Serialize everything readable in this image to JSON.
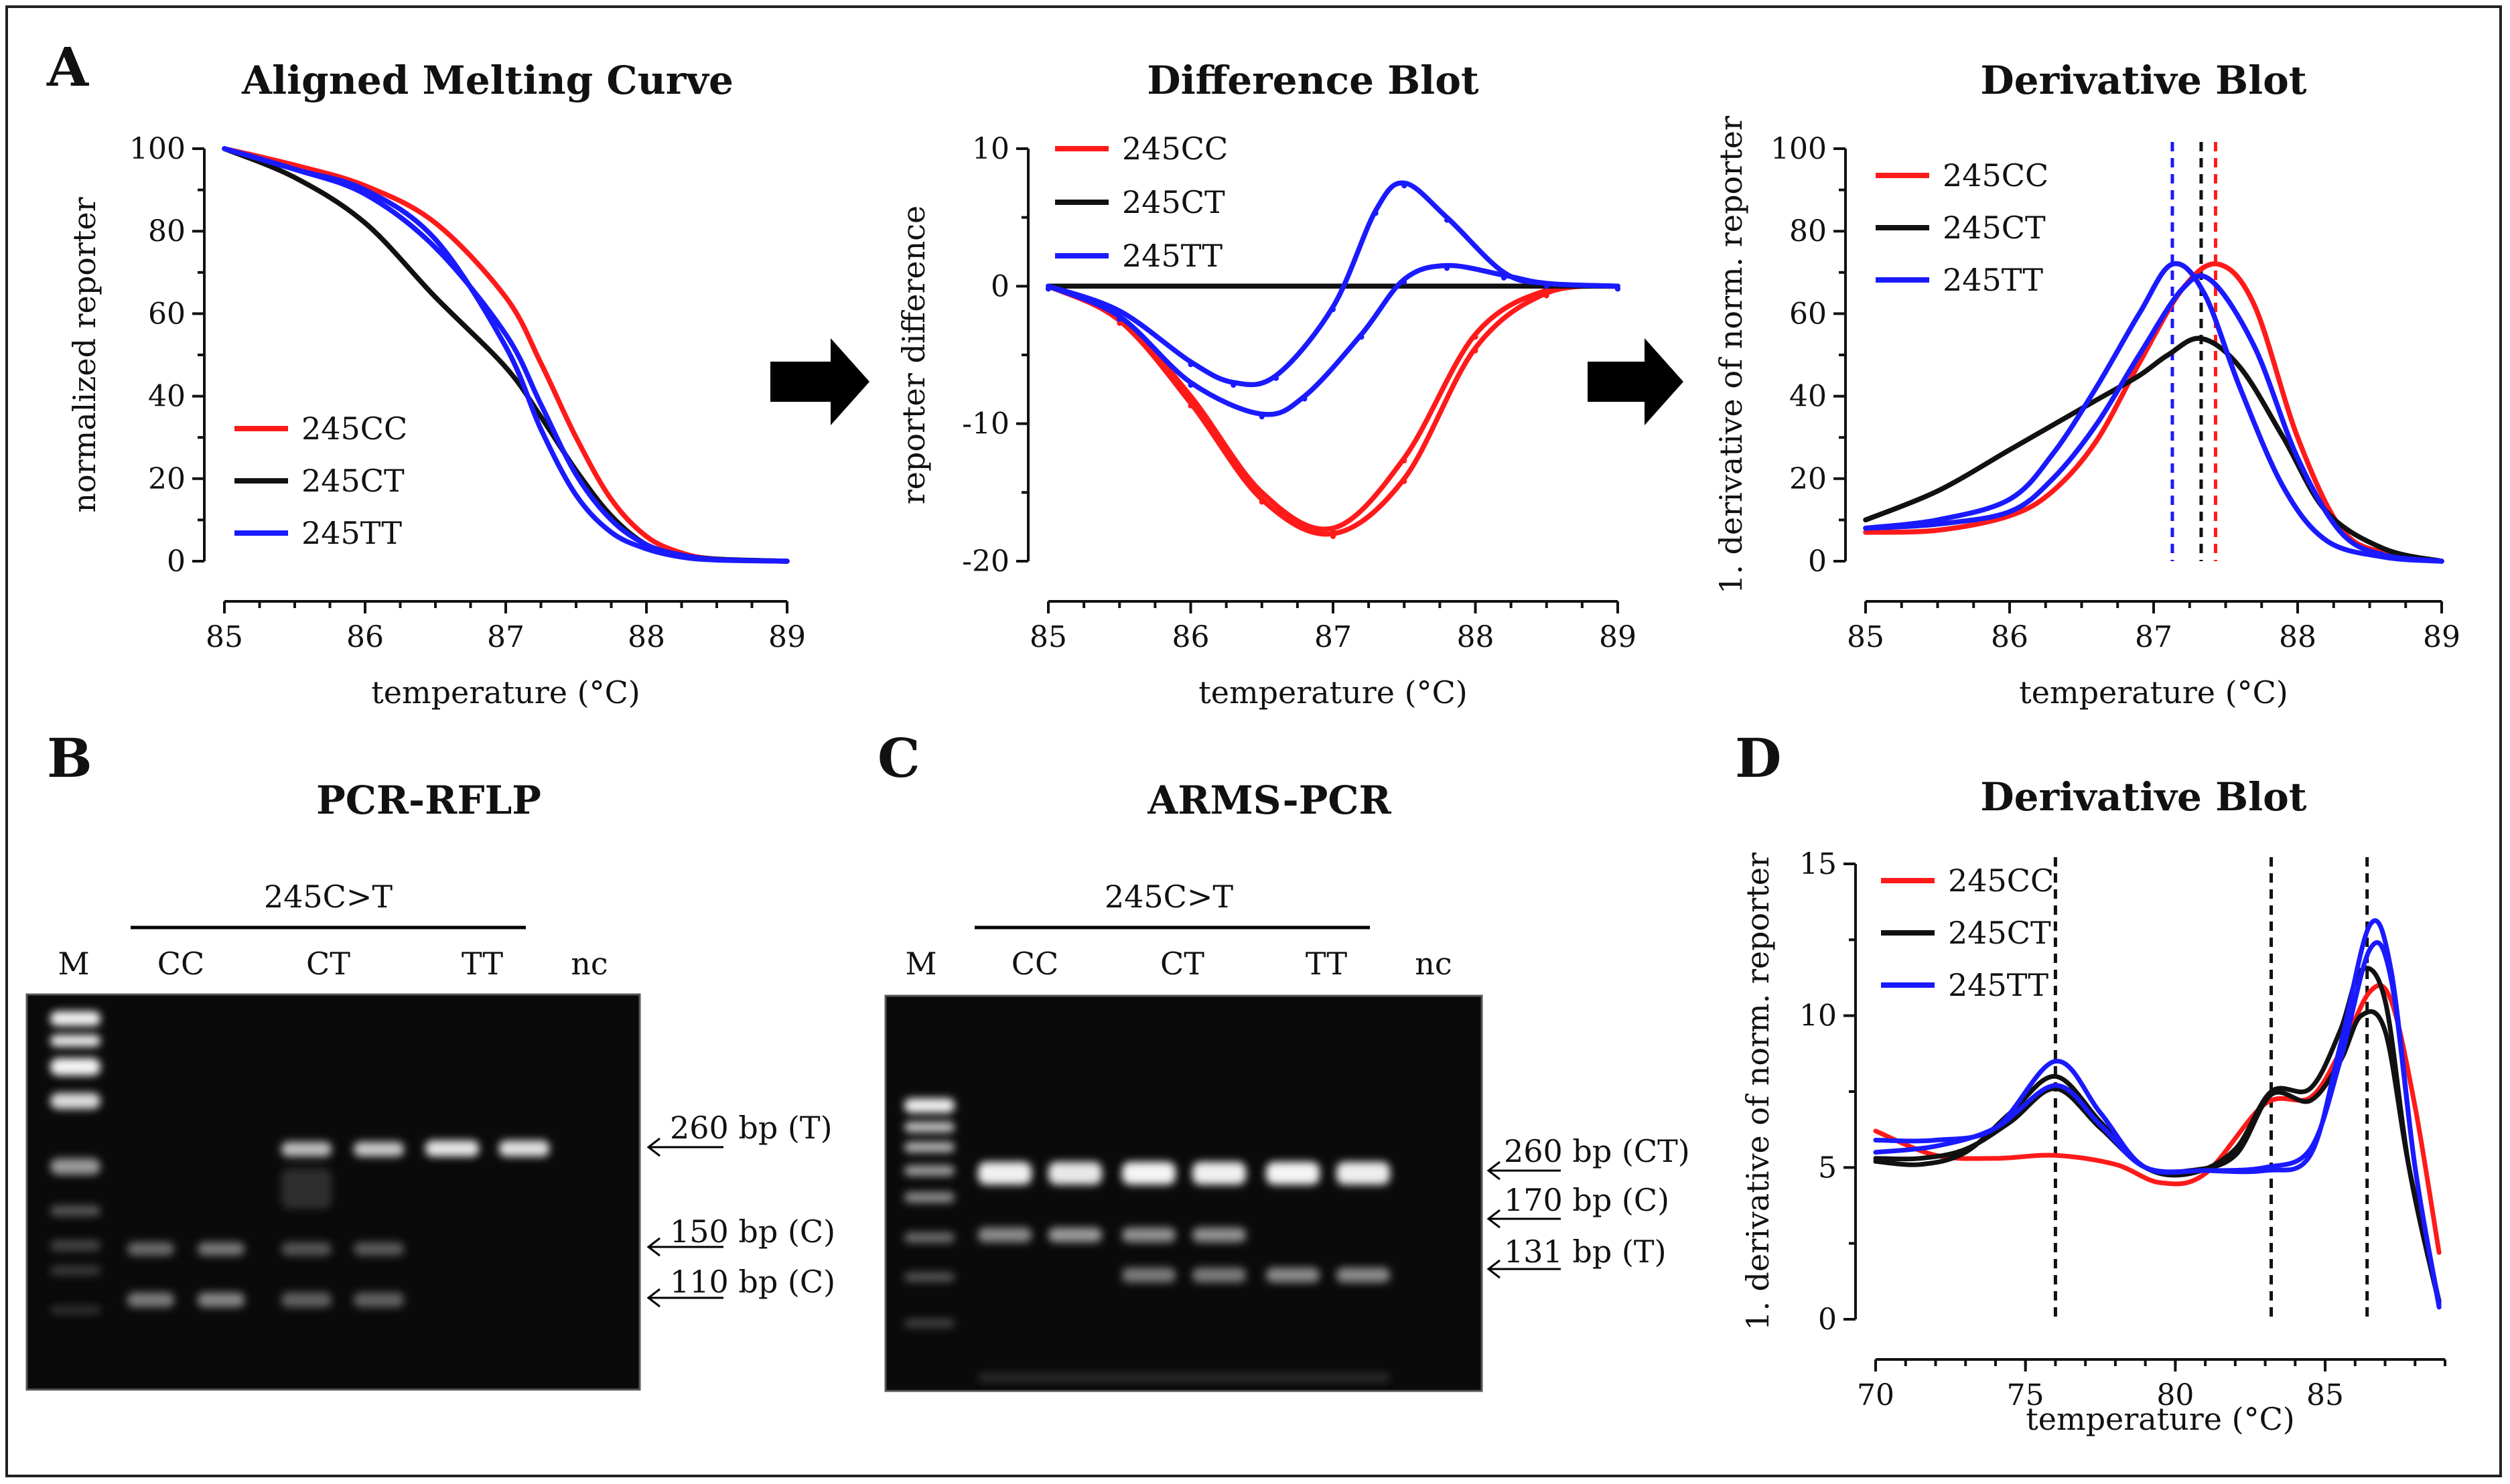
{
  "figure": {
    "panel_labels": [
      "A",
      "B",
      "C",
      "D"
    ]
  },
  "chart_data": [
    {
      "id": "melting",
      "type": "line",
      "title": "Aligned Melting Curve",
      "xlabel": "temperature (°C)",
      "ylabel": "normalized reporter",
      "xlim": [
        85,
        89
      ],
      "ylim": [
        0,
        100
      ],
      "xticks": [
        85,
        86,
        87,
        88,
        89
      ],
      "yticks": [
        0,
        20,
        40,
        60,
        80,
        100
      ],
      "legend": "lower-left",
      "series": [
        {
          "name": "245CC",
          "color": "#ff1a1a",
          "x": [
            85,
            85.5,
            86,
            86.5,
            87,
            87.25,
            87.5,
            87.75,
            88,
            88.25,
            88.5,
            89
          ],
          "y": [
            100,
            96,
            91,
            82,
            64,
            48,
            30,
            15,
            6,
            2,
            0.5,
            0
          ]
        },
        {
          "name": "245CT",
          "color": "#111111",
          "x": [
            85,
            85.5,
            86,
            86.5,
            87,
            87.25,
            87.5,
            87.75,
            88,
            88.25,
            88.5,
            89
          ],
          "y": [
            100,
            93,
            82,
            64,
            47,
            35,
            22,
            11,
            4,
            1.5,
            0.5,
            0
          ]
        },
        {
          "name": "245TT",
          "color": "#1a1aff",
          "x": [
            85,
            85.5,
            86,
            86.5,
            87,
            87.25,
            87.5,
            87.75,
            88,
            88.25,
            88.5,
            89
          ],
          "y": [
            100,
            95,
            90,
            78,
            52,
            32,
            16,
            7,
            3,
            1,
            0.3,
            0
          ]
        },
        {
          "name": "245TT",
          "color": "#1a1aff",
          "x": [
            85,
            85.5,
            86,
            86.5,
            87,
            87.25,
            87.5,
            87.75,
            88,
            88.25,
            88.5,
            89
          ],
          "y": [
            100,
            95,
            89,
            76,
            55,
            38,
            21,
            10,
            4,
            1.5,
            0.4,
            0
          ]
        }
      ]
    },
    {
      "id": "difference",
      "type": "line",
      "title": "Difference Blot",
      "xlabel": "temperature (°C)",
      "ylabel": "reporter difference",
      "xlim": [
        85,
        89
      ],
      "ylim": [
        -20,
        10
      ],
      "xticks": [
        85,
        86,
        87,
        88,
        89
      ],
      "yticks": [
        -20,
        -10,
        0,
        10
      ],
      "legend": "top-left",
      "series": [
        {
          "name": "245CC",
          "color": "#ff1a1a",
          "x": [
            85,
            85.5,
            86,
            86.5,
            87,
            87.5,
            88,
            88.5,
            89
          ],
          "y": [
            0,
            -2.5,
            -8.5,
            -15.5,
            -18,
            -14,
            -4.5,
            -0.5,
            0
          ]
        },
        {
          "name": "245CC",
          "color": "#ff1a1a",
          "x": [
            85,
            85.5,
            86,
            86.5,
            87,
            87.5,
            88,
            88.5,
            89
          ],
          "y": [
            0,
            -2.3,
            -8,
            -15,
            -17.6,
            -12.5,
            -3.5,
            -0.3,
            0
          ]
        },
        {
          "name": "245CT",
          "color": "#111111",
          "x": [
            85,
            86,
            87,
            88,
            89
          ],
          "y": [
            0,
            0,
            0,
            0,
            0
          ]
        },
        {
          "name": "245TT",
          "color": "#1a1aff",
          "x": [
            85,
            85.5,
            86,
            86.3,
            86.6,
            87,
            87.3,
            87.5,
            87.8,
            88.2,
            88.5,
            89
          ],
          "y": [
            0,
            -1.8,
            -5.5,
            -7,
            -6.5,
            -1.5,
            5.5,
            7.5,
            5,
            1,
            0.2,
            0
          ]
        },
        {
          "name": "245TT",
          "color": "#1a1aff",
          "x": [
            85,
            85.5,
            86,
            86.5,
            86.8,
            87.2,
            87.5,
            87.8,
            88.2,
            88.5,
            89
          ],
          "y": [
            0,
            -2.2,
            -7,
            -9.3,
            -8,
            -3.5,
            0.5,
            1.5,
            0.8,
            0.2,
            0
          ]
        }
      ]
    },
    {
      "id": "derivative1",
      "type": "line",
      "title": "Derivative Blot",
      "xlabel": "temperature (°C)",
      "ylabel": "1. derivative of norm. reporter",
      "xlim": [
        85,
        89
      ],
      "ylim": [
        0,
        100
      ],
      "xticks": [
        85,
        86,
        87,
        88,
        89
      ],
      "yticks": [
        0,
        20,
        40,
        60,
        80,
        100
      ],
      "legend": "top-left",
      "vlines": [
        {
          "x": 87.13,
          "color": "#1a1aff"
        },
        {
          "x": 87.33,
          "color": "#111111"
        },
        {
          "x": 87.43,
          "color": "#ff1a1a"
        }
      ],
      "series": [
        {
          "name": "245CC",
          "color": "#ff1a1a",
          "x": [
            85,
            85.5,
            86,
            86.3,
            86.6,
            86.9,
            87.2,
            87.45,
            87.7,
            88,
            88.3,
            88.6,
            89
          ],
          "y": [
            7,
            7.5,
            11,
            17,
            29,
            48,
            66,
            72,
            62,
            30,
            8,
            2,
            0
          ]
        },
        {
          "name": "245CT",
          "color": "#111111",
          "x": [
            85,
            85.5,
            86,
            86.3,
            86.6,
            86.9,
            87.1,
            87.33,
            87.6,
            87.9,
            88.2,
            88.6,
            89
          ],
          "y": [
            10,
            17,
            27,
            33,
            39,
            45,
            50,
            54,
            47,
            30,
            12,
            3,
            0
          ]
        },
        {
          "name": "245TT",
          "color": "#1a1aff",
          "x": [
            85,
            85.5,
            86,
            86.3,
            86.6,
            86.9,
            87.13,
            87.35,
            87.6,
            87.9,
            88.2,
            88.6,
            89
          ],
          "y": [
            8,
            10,
            15,
            26,
            42,
            60,
            72,
            65,
            42,
            18,
            5,
            1,
            0
          ]
        },
        {
          "name": "245TT",
          "color": "#1a1aff",
          "x": [
            85,
            85.5,
            86,
            86.3,
            86.6,
            86.9,
            87.2,
            87.4,
            87.7,
            88,
            88.3,
            88.6,
            89
          ],
          "y": [
            8,
            9,
            12,
            20,
            33,
            50,
            66,
            68,
            52,
            25,
            7,
            1.5,
            0
          ]
        }
      ]
    },
    {
      "id": "derivative2",
      "type": "line",
      "title": "Derivative Blot",
      "xlabel": "temperature (°C)",
      "ylabel": "1. derivative of norm. reporter",
      "xlim": [
        70,
        89
      ],
      "ylim": [
        0,
        15
      ],
      "xticks": [
        70,
        75,
        80,
        85
      ],
      "yticks": [
        0,
        5,
        10,
        15
      ],
      "legend": "top-left",
      "vlines": [
        {
          "x": 76,
          "color": "#111111"
        },
        {
          "x": 83.2,
          "color": "#111111"
        },
        {
          "x": 86.4,
          "color": "#111111"
        }
      ],
      "series": [
        {
          "name": "245CC",
          "color": "#ff1a1a",
          "x": [
            70,
            72,
            74,
            76,
            78,
            79.5,
            81,
            83,
            84.5,
            85.5,
            86.5,
            87.2,
            88,
            88.8
          ],
          "y": [
            6.2,
            5.4,
            5.3,
            5.4,
            5.1,
            4.5,
            4.8,
            7.1,
            7.3,
            8.8,
            10.8,
            10.5,
            7,
            2.2
          ]
        },
        {
          "name": "245CT",
          "color": "#111111",
          "x": [
            70,
            71.5,
            73,
            74.5,
            76,
            77.5,
            79,
            80.5,
            82,
            83.2,
            84.5,
            85.5,
            86.2,
            87,
            87.8,
            88.8
          ],
          "y": [
            5.2,
            5.1,
            5.5,
            6.8,
            8,
            6.5,
            5,
            4.8,
            5.6,
            7.5,
            7.6,
            9.5,
            11.5,
            10.5,
            5,
            0.5
          ]
        },
        {
          "name": "245CT",
          "color": "#111111",
          "x": [
            70,
            71.5,
            73,
            74.5,
            76,
            77.5,
            79,
            80.5,
            82,
            83.2,
            84.5,
            85.5,
            86.2,
            87,
            87.8,
            88.8
          ],
          "y": [
            5.3,
            5.3,
            5.6,
            6.5,
            7.6,
            6.3,
            5,
            4.9,
            5.4,
            7.4,
            7.2,
            8.5,
            10,
            9.5,
            5,
            0.6
          ]
        },
        {
          "name": "245TT",
          "color": "#1a1aff",
          "x": [
            70,
            72,
            74,
            76,
            77.5,
            79,
            81,
            83,
            84.5,
            85.5,
            86.5,
            87.2,
            88,
            88.8
          ],
          "y": [
            5.9,
            5.9,
            6.3,
            8.5,
            6.8,
            5,
            4.9,
            4.9,
            5.4,
            9,
            13,
            11.5,
            5,
            0.5
          ]
        },
        {
          "name": "245TT",
          "color": "#1a1aff",
          "x": [
            70,
            72,
            74,
            76,
            77.5,
            79,
            81,
            83,
            84.5,
            85.5,
            86.5,
            87.2,
            88,
            88.8
          ],
          "y": [
            5.5,
            5.7,
            6.3,
            7.7,
            6.4,
            5,
            4.9,
            5,
            5.6,
            8.5,
            12.2,
            11.2,
            5,
            0.4
          ]
        }
      ]
    }
  ],
  "gels": {
    "rflp": {
      "title": "PCR-RFLP",
      "group_label": "245C>T",
      "lane_labels": [
        "M",
        "CC",
        "CT",
        "TT",
        "nc"
      ],
      "bands": [
        "260 bp (T)",
        "150 bp (C)",
        "110 bp (C)"
      ]
    },
    "arms": {
      "title": "ARMS-PCR",
      "group_label": "245C>T",
      "lane_labels": [
        "M",
        "CC",
        "CT",
        "TT",
        "nc"
      ],
      "bands": [
        "260 bp (CT)",
        "170 bp (C)",
        "131 bp (T)"
      ]
    }
  }
}
